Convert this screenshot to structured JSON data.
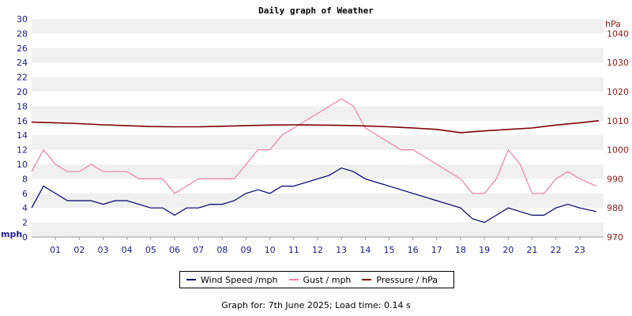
{
  "chart_data": {
    "type": "line",
    "title": "Daily graph of Weather",
    "left_axis": {
      "unit": "mph",
      "ylim": [
        0,
        30
      ],
      "ticks": [
        "0",
        "2",
        "4",
        "6",
        "8",
        "10",
        "12",
        "14",
        "16",
        "18",
        "20",
        "22",
        "24",
        "26",
        "28",
        "30"
      ]
    },
    "right_axis": {
      "unit": "hPa",
      "ylim": [
        970,
        1045
      ],
      "ticks": [
        "970",
        "980",
        "990",
        "1000",
        "1010",
        "1020",
        "1030",
        "1040"
      ]
    },
    "x": {
      "range": [
        0,
        24
      ],
      "ticks": [
        "01",
        "02",
        "03",
        "04",
        "05",
        "06",
        "07",
        "08",
        "09",
        "10",
        "11",
        "12",
        "13",
        "14",
        "15",
        "16",
        "17",
        "18",
        "19",
        "20",
        "21",
        "22",
        "23"
      ]
    },
    "series": [
      {
        "name": "Wind Speed /mph",
        "color": "#00006e",
        "axis": "left",
        "x": [
          0,
          0.5,
          1,
          1.5,
          2,
          2.5,
          3,
          3.5,
          4,
          4.5,
          5,
          5.5,
          6,
          6.5,
          7,
          7.5,
          8,
          8.5,
          9,
          9.5,
          10,
          10.5,
          11,
          11.5,
          12,
          12.5,
          13,
          13.5,
          14,
          14.5,
          15,
          15.5,
          16,
          16.5,
          17,
          17.5,
          18,
          18.5,
          19,
          19.5,
          20,
          20.5,
          21,
          21.5,
          22,
          22.5,
          23,
          23.7
        ],
        "values": [
          4,
          7,
          6,
          5,
          5,
          5,
          4.5,
          5,
          5,
          4.5,
          4,
          4,
          3,
          4,
          4,
          4.5,
          4.5,
          5,
          6,
          6.5,
          6,
          7,
          7,
          7.5,
          8,
          8.5,
          9.5,
          9,
          8,
          7.5,
          7,
          6.5,
          6,
          5.5,
          5,
          4.5,
          4,
          2.5,
          2,
          3,
          4,
          3.5,
          3,
          3,
          4,
          4.5,
          4,
          3.5
        ]
      },
      {
        "name": "Gust / mph",
        "color": "#f07fa3",
        "axis": "left",
        "x": [
          0,
          0.5,
          1,
          1.5,
          2,
          2.5,
          3,
          3.5,
          4,
          4.5,
          5,
          5.5,
          6,
          6.5,
          7,
          7.5,
          8,
          8.5,
          9,
          9.5,
          10,
          10.5,
          11,
          11.5,
          12,
          12.5,
          13,
          13.5,
          14,
          14.5,
          15,
          15.5,
          16,
          16.5,
          17,
          17.5,
          18,
          18.5,
          19,
          19.5,
          20,
          20.5,
          21,
          21.5,
          22,
          22.5,
          23,
          23.7
        ],
        "values": [
          9,
          12,
          10,
          9,
          9,
          10,
          9,
          9,
          9,
          8,
          8,
          8,
          6,
          7,
          8,
          8,
          8,
          8,
          10,
          12,
          12,
          14,
          15,
          16,
          17,
          18,
          19,
          18,
          15,
          14,
          13,
          12,
          12,
          11,
          10,
          9,
          8,
          6,
          6,
          8,
          12,
          10,
          6,
          6,
          8,
          9,
          8,
          7
        ]
      },
      {
        "name": "Pressure / hPa",
        "color": "#7a0000",
        "axis": "right",
        "x": [
          0,
          1,
          2,
          3,
          4,
          5,
          6,
          7,
          8,
          9,
          10,
          11,
          12,
          13,
          14,
          15,
          16,
          17,
          18,
          19,
          20,
          21,
          22,
          23,
          23.8
        ],
        "values": [
          1009.5,
          1009.3,
          1009,
          1008.6,
          1008.3,
          1008,
          1007.9,
          1007.9,
          1008.1,
          1008.3,
          1008.5,
          1008.6,
          1008.5,
          1008.4,
          1008.2,
          1007.9,
          1007.5,
          1007,
          1005.9,
          1006.5,
          1007,
          1007.5,
          1008.5,
          1009.3,
          1010
        ]
      }
    ],
    "grid": "horizontal bands",
    "legend_position": "bottom"
  },
  "footer": "Graph for: 7th June 2025; Load time: 0.14 s"
}
